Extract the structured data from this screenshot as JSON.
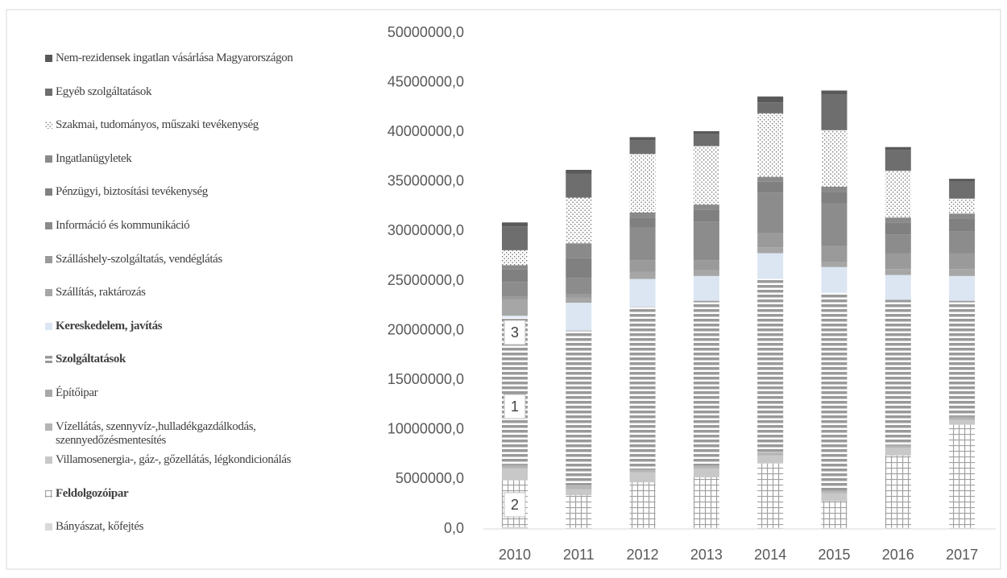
{
  "chart_data": {
    "type": "stacked_bar",
    "categories": [
      "2010",
      "2011",
      "2012",
      "2013",
      "2014",
      "2015",
      "2016",
      "2017"
    ],
    "ylim": [
      0,
      50000000
    ],
    "yticks": [
      {
        "value": 0,
        "label": "0,0"
      },
      {
        "value": 5000000,
        "label": "5000000,0"
      },
      {
        "value": 10000000,
        "label": "10000000,0"
      },
      {
        "value": 15000000,
        "label": "15000000,0"
      },
      {
        "value": 20000000,
        "label": "20000000,0"
      },
      {
        "value": 25000000,
        "label": "25000000,0"
      },
      {
        "value": 30000000,
        "label": "30000000,0"
      },
      {
        "value": 35000000,
        "label": "35000000,0"
      },
      {
        "value": 40000000,
        "label": "40000000,0"
      },
      {
        "value": 45000000,
        "label": "45000000,0"
      },
      {
        "value": 50000000,
        "label": "50000000,0"
      }
    ],
    "legend": "left",
    "annotations": [
      "3",
      "1",
      "2"
    ],
    "series": [
      {
        "name": "Bányászat, kőfejtés",
        "color": "#d9d9d9",
        "values": [
          200000,
          100000,
          100000,
          100000,
          100000,
          100000,
          100000,
          100000
        ]
      },
      {
        "name": "Feldolgozóipar",
        "color": "#a6a6a6",
        "pattern": "grid",
        "bold": true,
        "values": [
          4700000,
          3300000,
          4600000,
          5100000,
          6500000,
          2700000,
          7300000,
          10400000
        ]
      },
      {
        "name": "Villamosenergia-, gáz-, gőzellátás, légkondicionálás",
        "color": "#c8c8c8",
        "values": [
          1200000,
          600000,
          1000000,
          900000,
          800000,
          800000,
          800000,
          500000
        ]
      },
      {
        "name": "Vízellátás, szennyvíz-,hulladékgazdálkodás, szennyedőzésmentesítés",
        "color": "#b4b4b4",
        "values": [
          200000,
          200000,
          200000,
          200000,
          200000,
          200000,
          200000,
          200000
        ]
      },
      {
        "name": "Építőipar",
        "color": "#a8a8a8",
        "values": [
          200000,
          100000,
          100000,
          100000,
          100000,
          100000,
          100000,
          100000
        ]
      },
      {
        "name": "Szolgáltatások",
        "color": "#999999",
        "pattern": "stripes",
        "bold": true,
        "values": [
          14800000,
          15700000,
          16400000,
          16600000,
          17500000,
          19900000,
          14600000,
          11700000
        ]
      },
      {
        "name": "Kereskedelem, javítás",
        "color": "#dce6f2",
        "bold": true,
        "values": [
          200000,
          2800000,
          2800000,
          2500000,
          2600000,
          2600000,
          2500000,
          2500000
        ]
      },
      {
        "name": "Szállítás, raktározás",
        "color": "#a6a6a6",
        "values": [
          1600000,
          500000,
          700000,
          600000,
          600000,
          500000,
          600000,
          700000
        ]
      },
      {
        "name": "Szálláshely-szolgáltatás, vendéglátás",
        "color": "#9a9a9a",
        "values": [
          300000,
          400000,
          1200000,
          1000000,
          1400000,
          1600000,
          1600000,
          1600000
        ]
      },
      {
        "name": "Információ és kommunikáció",
        "color": "#8c8c8c",
        "values": [
          1500000,
          1600000,
          3300000,
          3900000,
          4100000,
          4300000,
          1900000,
          2200000
        ]
      },
      {
        "name": "Pénzügyi, biztosítási tevékenység",
        "color": "#808080",
        "values": [
          1300000,
          2000000,
          1000000,
          1200000,
          1100000,
          1200000,
          1200000,
          1300000
        ]
      },
      {
        "name": "Ingatlanügyletek",
        "color": "#8a8a8a",
        "values": [
          400000,
          1500000,
          500000,
          500000,
          500000,
          500000,
          500000,
          500000
        ]
      },
      {
        "name": "Szakmai, tudományos, műszaki tevékenység",
        "color": "#7f7f7f",
        "pattern": "dots",
        "values": [
          1500000,
          4600000,
          5900000,
          5900000,
          6400000,
          5700000,
          4700000,
          1500000
        ]
      },
      {
        "name": "Egyéb szolgáltatások",
        "color": "#6e6e6e",
        "values": [
          2400000,
          2400000,
          1400000,
          1200000,
          1100000,
          3600000,
          2100000,
          1700000
        ]
      },
      {
        "name": "Nem-rezidensek ingatlan vásárlása Magyarországon",
        "color": "#595959",
        "values": [
          400000,
          400000,
          300000,
          300000,
          600000,
          400000,
          300000,
          300000
        ]
      }
    ]
  }
}
